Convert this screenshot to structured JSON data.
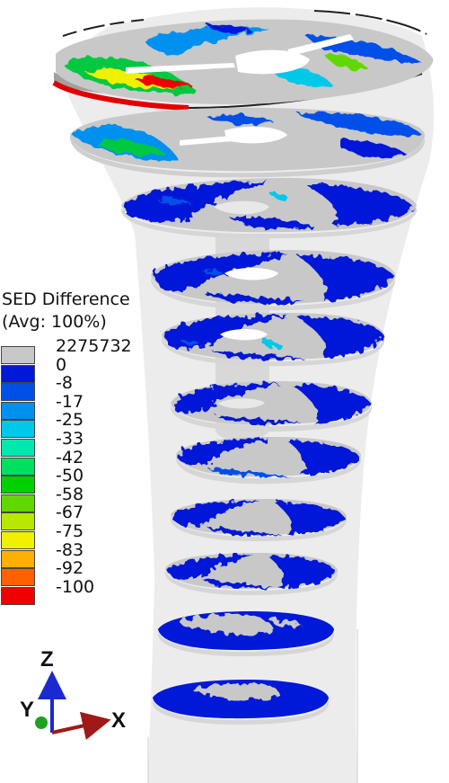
{
  "legend": {
    "title_line1": "SED Difference",
    "title_line2": "(Avg: 100%)",
    "entries": [
      {
        "label": "2275732",
        "color": "#c8c8c8"
      },
      {
        "label": "0",
        "color": "#0018d8"
      },
      {
        "label": "-8",
        "color": "#0050e8"
      },
      {
        "label": "-17",
        "color": "#0090f0"
      },
      {
        "label": "-25",
        "color": "#00c8e8"
      },
      {
        "label": "-33",
        "color": "#00e8b0"
      },
      {
        "label": "-42",
        "color": "#00e060"
      },
      {
        "label": "-50",
        "color": "#00d000"
      },
      {
        "label": "-58",
        "color": "#60d800"
      },
      {
        "label": "-67",
        "color": "#b8e800"
      },
      {
        "label": "-75",
        "color": "#f0f000"
      },
      {
        "label": "-83",
        "color": "#ffb000"
      },
      {
        "label": "-92",
        "color": "#ff6000"
      },
      {
        "label": "-100",
        "color": "#f00000"
      }
    ]
  },
  "triad": {
    "z": "Z",
    "y": "Y",
    "x": "X"
  }
}
